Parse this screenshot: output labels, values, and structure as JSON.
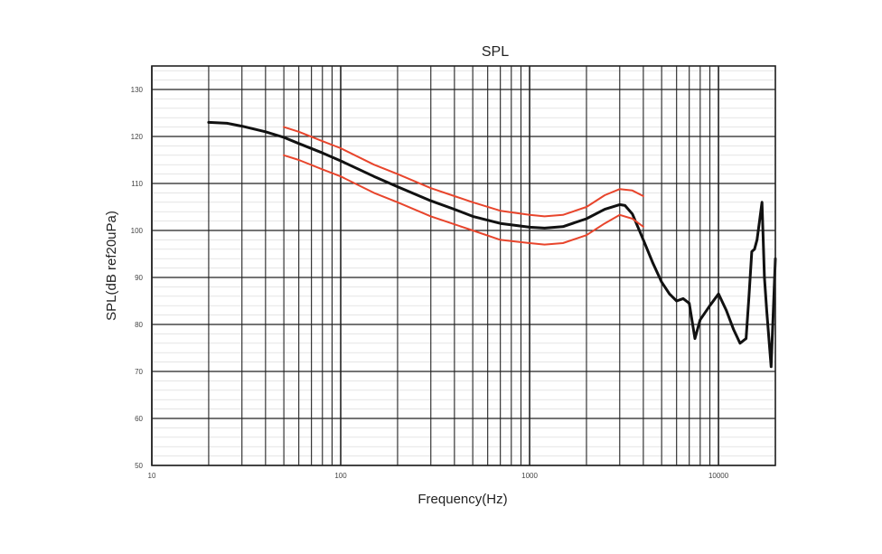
{
  "chart_data": {
    "type": "line",
    "title": "SPL",
    "xlabel": "Frequency(Hz)",
    "ylabel": "SPL(dB ref20uPa)",
    "xscale": "log",
    "xlim": [
      10,
      20000
    ],
    "ylim": [
      50,
      135
    ],
    "grid": true,
    "x_tick_labels": [
      "10",
      "100",
      "1000",
      "10000"
    ],
    "x_ticks": [
      10,
      100,
      1000,
      10000
    ],
    "y_tick_labels": [
      "50",
      "60",
      "70",
      "80",
      "90",
      "100",
      "110",
      "120",
      "130"
    ],
    "y_ticks": [
      50,
      60,
      70,
      80,
      90,
      100,
      110,
      120,
      130
    ],
    "colors": {
      "measured": "#111111",
      "limits": "#e8452c",
      "grid": "#222222"
    },
    "series": [
      {
        "role": "measured",
        "x": [
          20,
          25,
          30,
          40,
          50,
          60,
          80,
          100,
          150,
          200,
          300,
          400,
          500,
          700,
          1000,
          1200,
          1500,
          2000,
          2500,
          3000,
          3200,
          3500,
          4000,
          4500,
          5000,
          5500,
          6000,
          6500,
          7000,
          7500,
          8000,
          9000,
          10000,
          11000,
          12000,
          13000,
          14000,
          14500,
          15000,
          15500,
          16000,
          16500,
          17000,
          17500,
          18000,
          19000,
          20000
        ],
        "y": [
          123,
          122.8,
          122.2,
          121,
          119.8,
          118.5,
          116.5,
          114.8,
          111.5,
          109.3,
          106.3,
          104.5,
          103,
          101.5,
          100.7,
          100.5,
          100.8,
          102.5,
          104.5,
          105.5,
          105.3,
          103.5,
          98,
          93,
          89,
          86.5,
          85,
          85.5,
          84.5,
          77,
          81,
          84,
          86.5,
          83,
          79,
          76,
          77,
          86,
          95.5,
          96,
          98,
          102,
          106,
          90,
          83,
          71,
          94
        ]
      },
      {
        "role": "upper-limit",
        "x": [
          50,
          60,
          80,
          100,
          150,
          200,
          300,
          400,
          500,
          700,
          1000,
          1200,
          1500,
          2000,
          2500,
          3000,
          3500,
          4000
        ],
        "y": [
          122,
          121,
          119,
          117.5,
          114,
          112,
          109,
          107.3,
          106,
          104.2,
          103.3,
          103,
          103.3,
          105,
          107.5,
          108.8,
          108.5,
          107.3
        ]
      },
      {
        "role": "lower-limit",
        "x": [
          50,
          60,
          80,
          100,
          150,
          200,
          300,
          400,
          500,
          700,
          1000,
          1200,
          1500,
          2000,
          2500,
          3000,
          3500,
          4000
        ],
        "y": [
          116,
          115,
          113,
          111.5,
          108,
          106,
          103,
          101.3,
          100,
          98,
          97.3,
          97,
          97.3,
          99,
          101.5,
          103.3,
          102.5,
          100.8
        ]
      }
    ]
  }
}
